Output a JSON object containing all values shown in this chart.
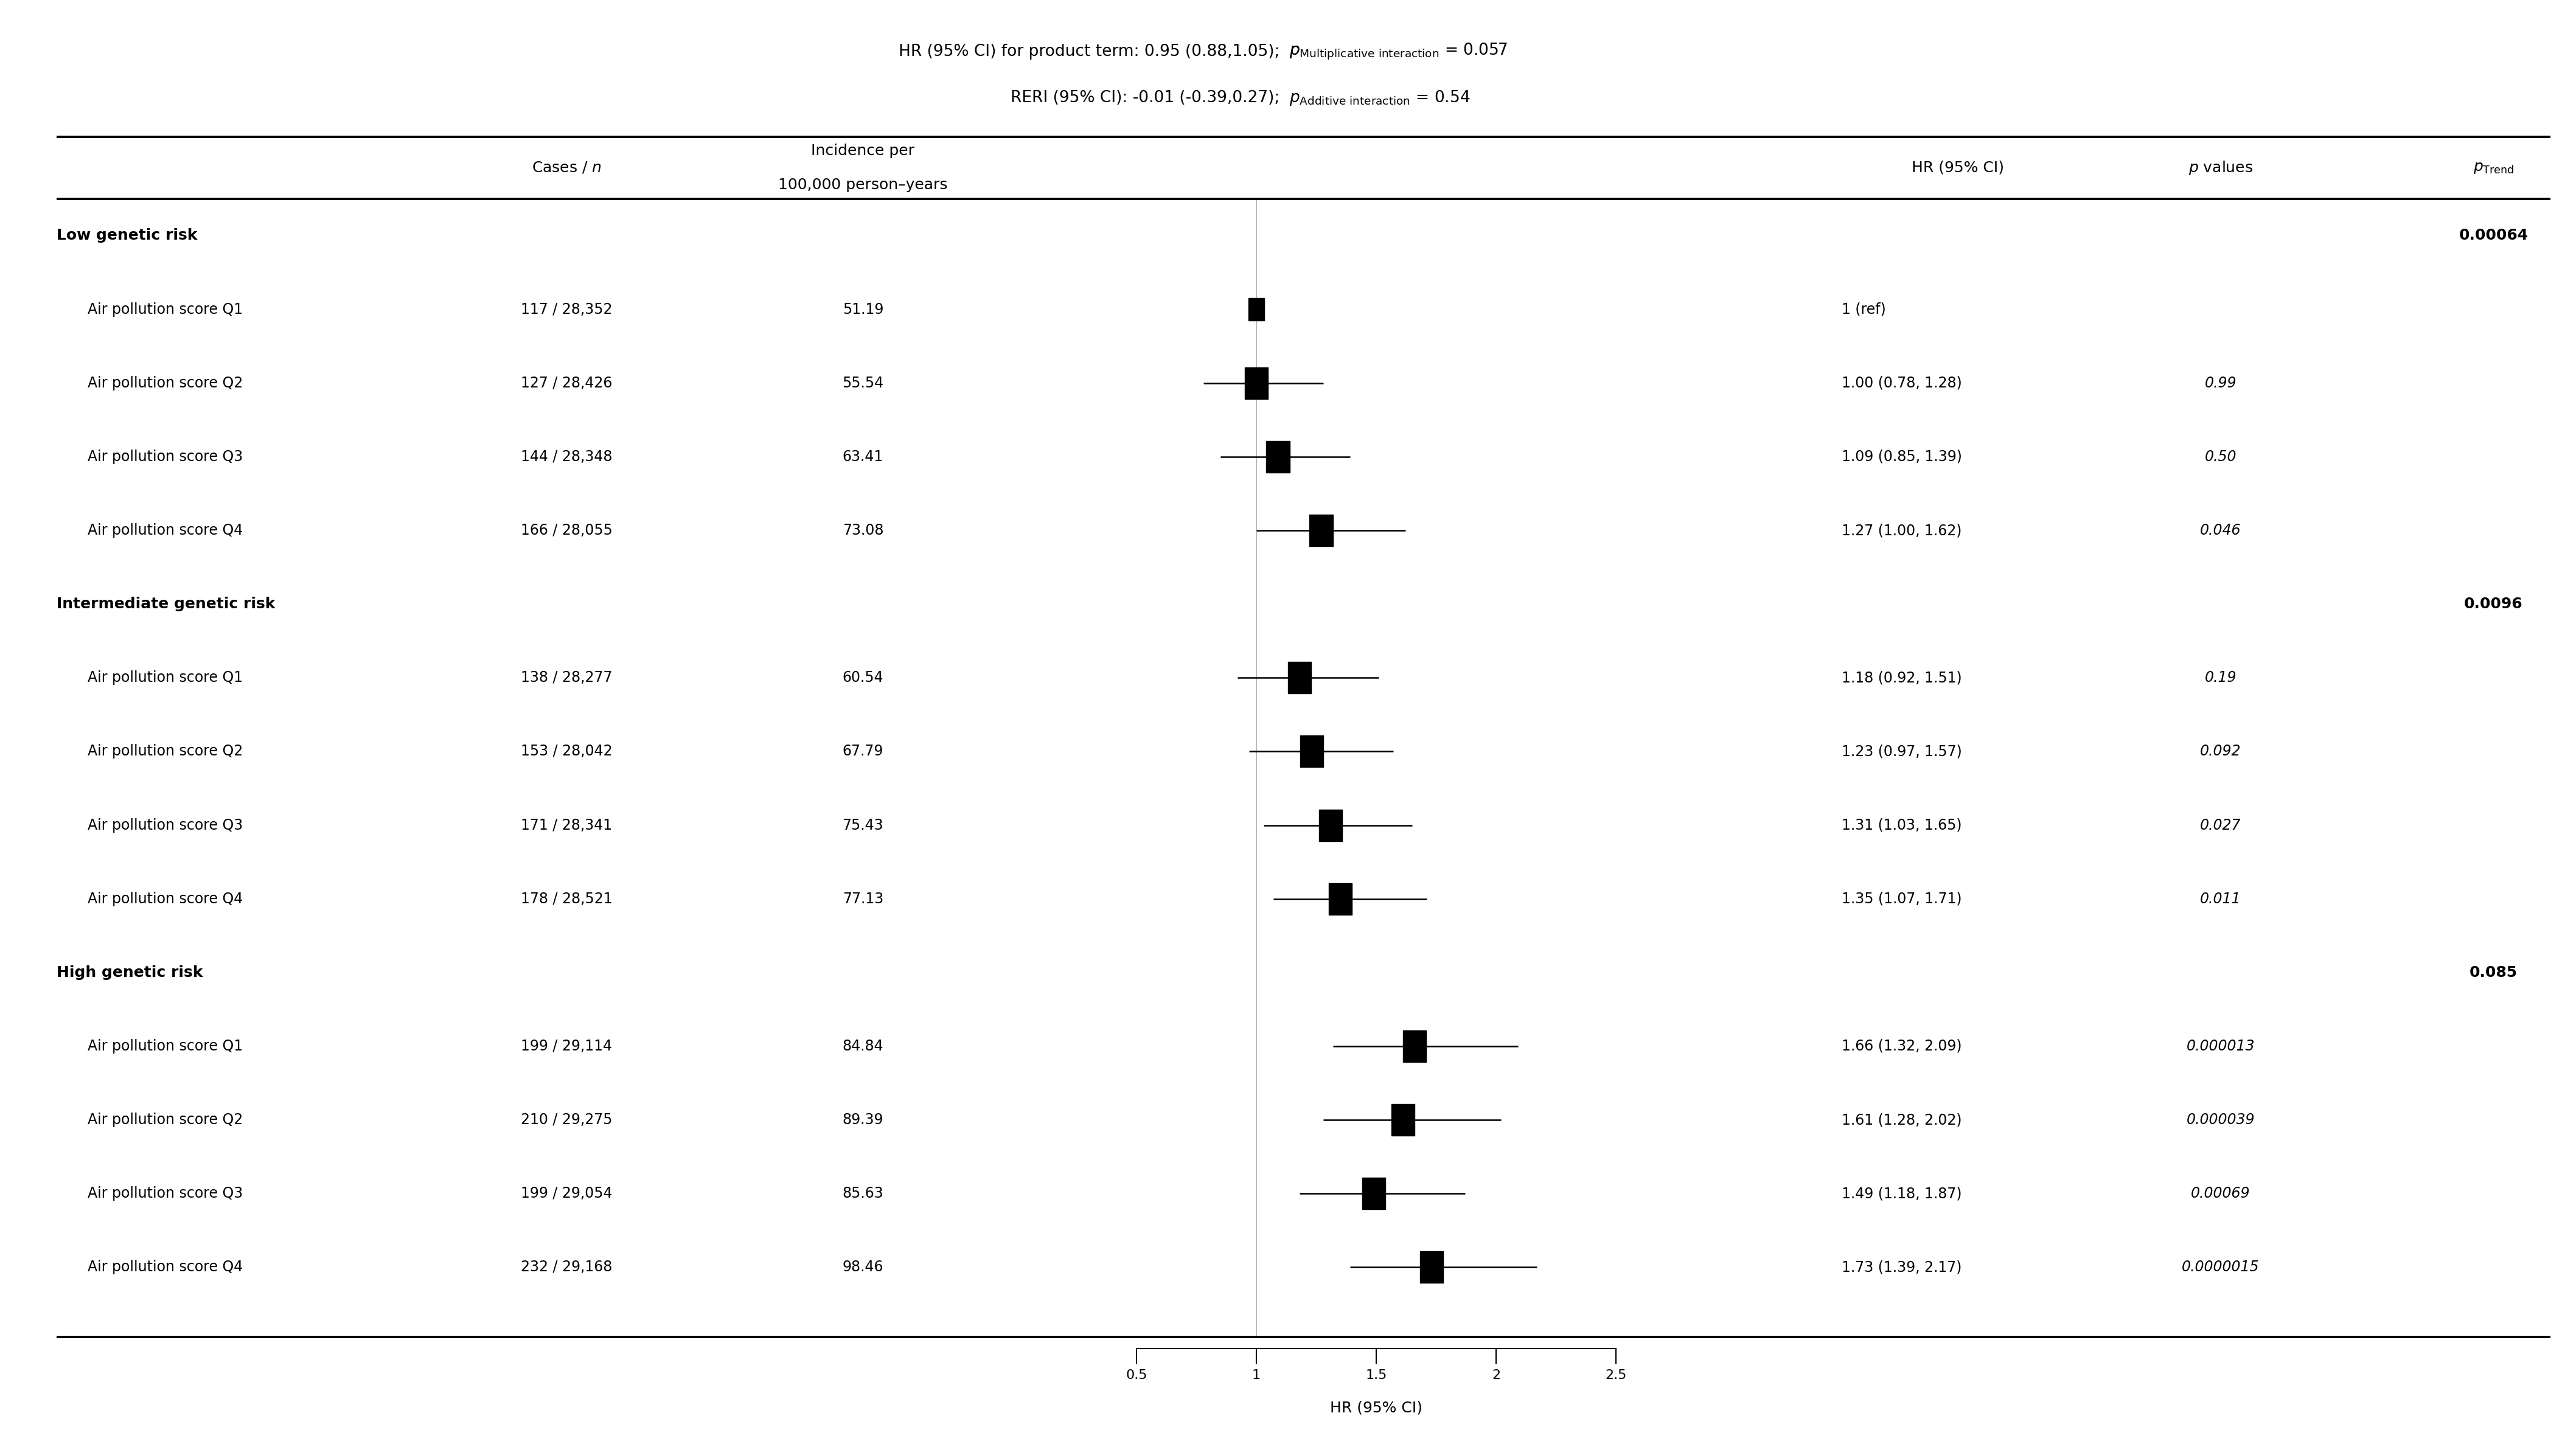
{
  "groups": [
    {
      "name": "Low genetic risk",
      "p_trend": "0.00064",
      "rows": [
        {
          "label": "Air pollution score Q1",
          "cases_n": "117 / 28,352",
          "incidence": "51.19",
          "hr": 1.0,
          "ci_lo": 1.0,
          "ci_hi": 1.0,
          "hr_text": "1 (ref)",
          "p_val": "",
          "is_ref": true
        },
        {
          "label": "Air pollution score Q2",
          "cases_n": "127 / 28,426",
          "incidence": "55.54",
          "hr": 1.0,
          "ci_lo": 0.78,
          "ci_hi": 1.28,
          "hr_text": "1.00 (0.78, 1.28)",
          "p_val": "0.99",
          "is_ref": false
        },
        {
          "label": "Air pollution score Q3",
          "cases_n": "144 / 28,348",
          "incidence": "63.41",
          "hr": 1.09,
          "ci_lo": 0.85,
          "ci_hi": 1.39,
          "hr_text": "1.09 (0.85, 1.39)",
          "p_val": "0.50",
          "is_ref": false
        },
        {
          "label": "Air pollution score Q4",
          "cases_n": "166 / 28,055",
          "incidence": "73.08",
          "hr": 1.27,
          "ci_lo": 1.0,
          "ci_hi": 1.62,
          "hr_text": "1.27 (1.00, 1.62)",
          "p_val": "0.046",
          "is_ref": false
        }
      ]
    },
    {
      "name": "Intermediate genetic risk",
      "p_trend": "0.0096",
      "rows": [
        {
          "label": "Air pollution score Q1",
          "cases_n": "138 / 28,277",
          "incidence": "60.54",
          "hr": 1.18,
          "ci_lo": 0.92,
          "ci_hi": 1.51,
          "hr_text": "1.18 (0.92, 1.51)",
          "p_val": "0.19",
          "is_ref": false
        },
        {
          "label": "Air pollution score Q2",
          "cases_n": "153 / 28,042",
          "incidence": "67.79",
          "hr": 1.23,
          "ci_lo": 0.97,
          "ci_hi": 1.57,
          "hr_text": "1.23 (0.97, 1.57)",
          "p_val": "0.092",
          "is_ref": false
        },
        {
          "label": "Air pollution score Q3",
          "cases_n": "171 / 28,341",
          "incidence": "75.43",
          "hr": 1.31,
          "ci_lo": 1.03,
          "ci_hi": 1.65,
          "hr_text": "1.31 (1.03, 1.65)",
          "p_val": "0.027",
          "is_ref": false
        },
        {
          "label": "Air pollution score Q4",
          "cases_n": "178 / 28,521",
          "incidence": "77.13",
          "hr": 1.35,
          "ci_lo": 1.07,
          "ci_hi": 1.71,
          "hr_text": "1.35 (1.07, 1.71)",
          "p_val": "0.011",
          "is_ref": false
        }
      ]
    },
    {
      "name": "High genetic risk",
      "p_trend": "0.085",
      "rows": [
        {
          "label": "Air pollution score Q1",
          "cases_n": "199 / 29,114",
          "incidence": "84.84",
          "hr": 1.66,
          "ci_lo": 1.32,
          "ci_hi": 2.09,
          "hr_text": "1.66 (1.32, 2.09)",
          "p_val": "0.000013",
          "is_ref": false
        },
        {
          "label": "Air pollution score Q2",
          "cases_n": "210 / 29,275",
          "incidence": "89.39",
          "hr": 1.61,
          "ci_lo": 1.28,
          "ci_hi": 2.02,
          "hr_text": "1.61 (1.28, 2.02)",
          "p_val": "0.000039",
          "is_ref": false
        },
        {
          "label": "Air pollution score Q3",
          "cases_n": "199 / 29,054",
          "incidence": "85.63",
          "hr": 1.49,
          "ci_lo": 1.18,
          "ci_hi": 1.87,
          "hr_text": "1.49 (1.18, 1.87)",
          "p_val": "0.00069",
          "is_ref": false
        },
        {
          "label": "Air pollution score Q4",
          "cases_n": "232 / 29,168",
          "incidence": "98.46",
          "hr": 1.73,
          "ci_lo": 1.39,
          "ci_hi": 2.17,
          "hr_text": "1.73 (1.39, 2.17)",
          "p_val": "0.0000015",
          "is_ref": false
        }
      ]
    }
  ],
  "xaxis_ticks": [
    0.5,
    1.0,
    1.5,
    2.0,
    2.5
  ],
  "xaxis_tick_labels": [
    "0.5",
    "1",
    "1.5",
    "2",
    "2.5"
  ],
  "xaxis_xlim": [
    0.38,
    2.85
  ],
  "xaxis_label": "HR (95% CI)",
  "background_color": "#ffffff"
}
